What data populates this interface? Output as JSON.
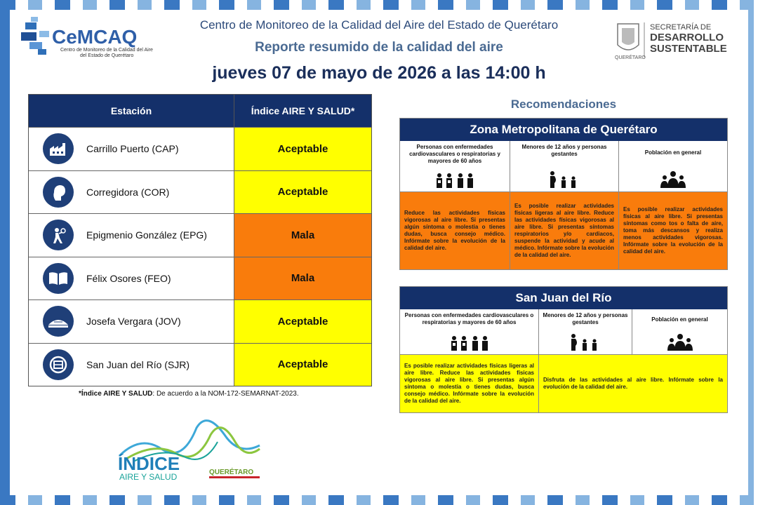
{
  "header": {
    "line1": "Centro de Monitoreo de la Calidad del Aire del Estado de Querétaro",
    "line2": "Reporte resumido de la calidad del aire",
    "line3": "jueves 07 de mayo de 2026 a las 14:00 h"
  },
  "logo_cemcaq": {
    "brand": "CeMCAQ",
    "sub1": "Centro de Monitoreo de la Calidad del Aire",
    "sub2": "del Estado de Querétaro"
  },
  "logo_sds": {
    "l1": "SECRETARÍA DE",
    "l2": "DESARROLLO",
    "l3": "SUSTENTABLE",
    "small": "QUERÉTARO"
  },
  "stations_table": {
    "col_station": "Estación",
    "col_index": "Índice AIRE Y SALUD*",
    "rows": [
      {
        "icon": "factory-icon",
        "name": "Carrillo Puerto (CAP)",
        "value": "Aceptable",
        "color": "#ffff00"
      },
      {
        "icon": "profile-head-icon",
        "name": "Corregidora (COR)",
        "value": "Aceptable",
        "color": "#ffff00"
      },
      {
        "icon": "person-torch-icon",
        "name": "Epigmenio González (EPG)",
        "value": "Mala",
        "color": "#f97c0c"
      },
      {
        "icon": "open-book-icon",
        "name": "Félix Osores (FEO)",
        "value": "Mala",
        "color": "#f97c0c"
      },
      {
        "icon": "building-dome-icon",
        "name": "Josefa Vergara (JOV)",
        "value": "Aceptable",
        "color": "#ffff00"
      },
      {
        "icon": "emblem-icon",
        "name": "San Juan del Río (SJR)",
        "value": "Aceptable",
        "color": "#ffff00"
      }
    ]
  },
  "note": {
    "bold": "*Índice AIRE Y SALUD",
    "text": ": De acuerdo a la NOM-172-SEMARNAT-2023."
  },
  "index_logo": {
    "l1": "ÍNDICE",
    "l2": "AIRE Y SALUD",
    "l3": "QUERÉTARO"
  },
  "recommendations": {
    "title": "Recomendaciones",
    "zones": [
      {
        "title": "Zona Metropolitana de Querétaro",
        "groups": [
          {
            "head": "Personas con enfermedades cardiovasculares o respiratorias y mayores de 60 años",
            "body": "Reduce las actividades físicas vigorosas al aire libre. Si presentas algún síntoma o molestia o tienes dudas, busca consejo médico. Infórmate sobre la evolución de la calidad del aire.",
            "color": "#f97c0c"
          },
          {
            "head": "Menores de 12 años y personas gestantes",
            "body": "Es posible realizar actividades físicas ligeras al aire libre. Reduce las actividades físicas vigorosas al aire libre. Si presentas síntomas respiratorios y/o cardiacos, suspende la actividad y acude al médico. Infórmate sobre la evolución de la calidad del aire.",
            "color": "#f97c0c"
          },
          {
            "head": "Población en general",
            "body": "Es posible realizar actividades físicas al aire libre. Si presentas síntomas como tos o falta de aire, toma más descansos y realiza menos actividades vigorosas. Infórmate sobre la evolución de la calidad del aire.",
            "color": "#f97c0c"
          }
        ]
      },
      {
        "title": "San Juan del Río",
        "groups": [
          {
            "head": "Personas con enfermedades cardiovasculares o respiratorias y mayores de 60 años",
            "body": "Es posible realizar actividades físicas ligeras al aire libre. Reduce las actividades físicas vigorosas al aire libre. Si presentas algún síntoma o molestia o tienes dudas, busca consejo médico. Infórmate sobre la evolución de la calidad del aire.",
            "color": "#ffff00"
          },
          {
            "head": "Menores de 12 años y personas gestantes",
            "body": "Disfruta de las actividades al aire libre. Infórmate sobre la evolución de la calidad del aire.",
            "color": "#ffff00"
          },
          {
            "head": "Población en general",
            "body": "",
            "color": "#ffff00"
          }
        ]
      }
    ]
  }
}
